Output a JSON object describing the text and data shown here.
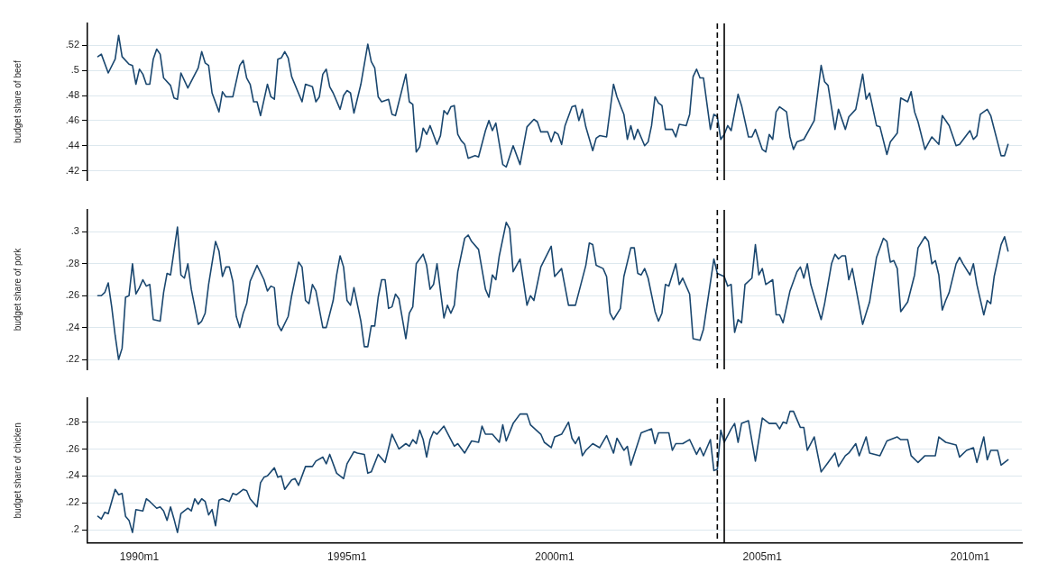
{
  "chart_data": [
    {
      "type": "line",
      "ylabel": "budget share of beef",
      "xlim": [
        "1988-10",
        "2011-04"
      ],
      "ylim": [
        0.4125,
        0.5375
      ],
      "yticks": [
        {
          "value": 0.42,
          "label": ".42"
        },
        {
          "value": 0.44,
          "label": ".44"
        },
        {
          "value": 0.46,
          "label": ".46"
        },
        {
          "value": 0.48,
          "label": ".48"
        },
        {
          "value": 0.5,
          "label": ".5"
        },
        {
          "value": 0.52,
          "label": ".52"
        }
      ],
      "grid": "y",
      "legend": false,
      "tick_labels": "y",
      "marker": "none",
      "line_style": "solid",
      "ref_lines": [
        {
          "axis": "x",
          "value": "2003-12",
          "line_style": "dashed",
          "color": "#000000"
        },
        {
          "axis": "x",
          "value": "2004-02",
          "line_style": "solid",
          "color": "#000000"
        }
      ],
      "series": [
        {
          "color": "#1a476f",
          "x": [
            "1989-01",
            "1989-02",
            "1989-04",
            "1989-06",
            "1989-07",
            "1989-08",
            "1989-10",
            "1989-11",
            "1989-12",
            "1990-01",
            "1990-02",
            "1990-03",
            "1990-04",
            "1990-05",
            "1990-06",
            "1990-07",
            "1990-08",
            "1990-10",
            "1990-11",
            "1990-12",
            "1991-01",
            "1991-03",
            "1991-06",
            "1991-07",
            "1991-08",
            "1991-09",
            "1991-10",
            "1991-12",
            "1992-01",
            "1992-02",
            "1992-04",
            "1992-06",
            "1992-07",
            "1992-08",
            "1992-09",
            "1992-10",
            "1992-11",
            "1992-12",
            "1993-02",
            "1993-03",
            "1993-04",
            "1993-05",
            "1993-06",
            "1993-07",
            "1993-08",
            "1993-09",
            "1993-12",
            "1994-01",
            "1994-03",
            "1994-04",
            "1994-05",
            "1994-06",
            "1994-07",
            "1994-08",
            "1994-09",
            "1994-11",
            "1994-12",
            "1995-01",
            "1995-02",
            "1995-03",
            "1995-05",
            "1995-07",
            "1995-08",
            "1995-09",
            "1995-10",
            "1995-11",
            "1996-01",
            "1996-02",
            "1996-03",
            "1996-06",
            "1996-07",
            "1996-08",
            "1996-09",
            "1996-10",
            "1996-11",
            "1996-12",
            "1997-01",
            "1997-03",
            "1997-04",
            "1997-05",
            "1997-06",
            "1997-07",
            "1997-08",
            "1997-09",
            "1997-10",
            "1997-11",
            "1997-12",
            "1998-02",
            "1998-03",
            "1998-05",
            "1998-06",
            "1998-07",
            "1998-08",
            "1998-10",
            "1998-11",
            "1999-01",
            "1999-03",
            "1999-05",
            "1999-07",
            "1999-08",
            "1999-09",
            "1999-11",
            "1999-12",
            "2000-01",
            "2000-02",
            "2000-03",
            "2000-04",
            "2000-06",
            "2000-07",
            "2000-08",
            "2000-09",
            "2000-10",
            "2000-12",
            "2001-01",
            "2001-02",
            "2001-04",
            "2001-06",
            "2001-07",
            "2001-09",
            "2001-10",
            "2001-11",
            "2001-12",
            "2002-01",
            "2002-03",
            "2002-04",
            "2002-05",
            "2002-06",
            "2002-07",
            "2002-08",
            "2002-09",
            "2002-11",
            "2002-12",
            "2003-01",
            "2003-03",
            "2003-04",
            "2003-05",
            "2003-06",
            "2003-07",
            "2003-08",
            "2003-10",
            "2003-11",
            "2003-12",
            "2004-01",
            "2004-02",
            "2004-03",
            "2004-04",
            "2004-06",
            "2004-07",
            "2004-09",
            "2004-10",
            "2004-11",
            "2005-01",
            "2005-02",
            "2005-03",
            "2005-04",
            "2005-05",
            "2005-06",
            "2005-07",
            "2005-08",
            "2005-09",
            "2005-10",
            "2005-11",
            "2006-01",
            "2006-04",
            "2006-06",
            "2006-07",
            "2006-08",
            "2006-10",
            "2006-11",
            "2007-01",
            "2007-02",
            "2007-04",
            "2007-06",
            "2007-07",
            "2007-08",
            "2007-10",
            "2007-11",
            "2008-01",
            "2008-02",
            "2008-04",
            "2008-05",
            "2008-07",
            "2008-08",
            "2008-09",
            "2008-10",
            "2008-12",
            "2009-02",
            "2009-04",
            "2009-05",
            "2009-07",
            "2009-09",
            "2009-10",
            "2010-01",
            "2010-02",
            "2010-03",
            "2010-04",
            "2010-06",
            "2010-07",
            "2010-10",
            "2010-11",
            "2010-12"
          ],
          "values": [
            0.511,
            0.513,
            0.498,
            0.509,
            0.528,
            0.511,
            0.505,
            0.504,
            0.489,
            0.501,
            0.497,
            0.489,
            0.489,
            0.509,
            0.517,
            0.513,
            0.494,
            0.488,
            0.478,
            0.477,
            0.498,
            0.486,
            0.502,
            0.515,
            0.506,
            0.504,
            0.482,
            0.467,
            0.483,
            0.479,
            0.479,
            0.504,
            0.508,
            0.494,
            0.489,
            0.475,
            0.475,
            0.464,
            0.489,
            0.479,
            0.477,
            0.509,
            0.51,
            0.515,
            0.51,
            0.495,
            0.475,
            0.489,
            0.487,
            0.475,
            0.479,
            0.497,
            0.501,
            0.487,
            0.482,
            0.469,
            0.48,
            0.484,
            0.482,
            0.466,
            0.489,
            0.521,
            0.507,
            0.502,
            0.479,
            0.475,
            0.477,
            0.465,
            0.464,
            0.497,
            0.475,
            0.473,
            0.435,
            0.439,
            0.454,
            0.449,
            0.456,
            0.441,
            0.448,
            0.468,
            0.465,
            0.471,
            0.472,
            0.449,
            0.444,
            0.441,
            0.43,
            0.432,
            0.431,
            0.452,
            0.46,
            0.452,
            0.458,
            0.425,
            0.423,
            0.44,
            0.425,
            0.455,
            0.461,
            0.459,
            0.451,
            0.451,
            0.443,
            0.451,
            0.449,
            0.441,
            0.456,
            0.471,
            0.472,
            0.46,
            0.469,
            0.455,
            0.436,
            0.446,
            0.448,
            0.447,
            0.489,
            0.479,
            0.465,
            0.445,
            0.456,
            0.445,
            0.453,
            0.44,
            0.443,
            0.456,
            0.479,
            0.474,
            0.472,
            0.453,
            0.453,
            0.447,
            0.457,
            0.456,
            0.465,
            0.495,
            0.501,
            0.494,
            0.494,
            0.453,
            0.465,
            0.463,
            0.445,
            0.449,
            0.456,
            0.452,
            0.481,
            0.472,
            0.447,
            0.447,
            0.453,
            0.437,
            0.435,
            0.449,
            0.445,
            0.467,
            0.471,
            0.469,
            0.467,
            0.447,
            0.437,
            0.443,
            0.445,
            0.46,
            0.504,
            0.491,
            0.488,
            0.453,
            0.469,
            0.453,
            0.463,
            0.469,
            0.497,
            0.477,
            0.482,
            0.456,
            0.455,
            0.433,
            0.443,
            0.45,
            0.478,
            0.475,
            0.483,
            0.467,
            0.459,
            0.437,
            0.447,
            0.441,
            0.464,
            0.456,
            0.44,
            0.441,
            0.452,
            0.445,
            0.448,
            0.465,
            0.469,
            0.464,
            0.432,
            0.432,
            0.441
          ]
        }
      ]
    },
    {
      "type": "line",
      "ylabel": "budget share of pork",
      "xlim": [
        "1988-10",
        "2011-04"
      ],
      "ylim": [
        0.2138,
        0.3138
      ],
      "yticks": [
        {
          "value": 0.22,
          "label": ".22"
        },
        {
          "value": 0.24,
          "label": ".24"
        },
        {
          "value": 0.26,
          "label": ".26"
        },
        {
          "value": 0.28,
          "label": ".28"
        },
        {
          "value": 0.3,
          "label": ".3"
        }
      ],
      "grid": "y",
      "legend": false,
      "tick_labels": "y",
      "marker": "none",
      "line_style": "solid",
      "ref_lines": [
        {
          "axis": "x",
          "value": "2003-12",
          "line_style": "dashed",
          "color": "#000000"
        },
        {
          "axis": "x",
          "value": "2004-02",
          "line_style": "solid",
          "color": "#000000"
        }
      ],
      "series": [
        {
          "color": "#1a476f",
          "x": [
            "1989-01",
            "1989-02",
            "1989-03",
            "1989-04",
            "1989-05",
            "1989-06",
            "1989-07",
            "1989-08",
            "1989-09",
            "1989-10",
            "1989-11",
            "1989-12",
            "1990-01",
            "1990-02",
            "1990-03",
            "1990-04",
            "1990-05",
            "1990-07",
            "1990-08",
            "1990-09",
            "1990-10",
            "1990-12",
            "1991-01",
            "1991-02",
            "1991-03",
            "1991-04",
            "1991-06",
            "1991-07",
            "1991-08",
            "1991-09",
            "1991-11",
            "1991-12",
            "1992-01",
            "1992-02",
            "1992-03",
            "1992-04",
            "1992-05",
            "1992-06",
            "1992-07",
            "1992-08",
            "1992-09",
            "1992-11",
            "1993-01",
            "1993-02",
            "1993-03",
            "1993-04",
            "1993-05",
            "1993-06",
            "1993-08",
            "1993-09",
            "1993-11",
            "1993-12",
            "1994-01",
            "1994-02",
            "1994-03",
            "1994-04",
            "1994-06",
            "1994-07",
            "1994-09",
            "1994-10",
            "1994-11",
            "1994-12",
            "1995-01",
            "1995-02",
            "1995-03",
            "1995-05",
            "1995-06",
            "1995-07",
            "1995-08",
            "1995-09",
            "1995-10",
            "1995-11",
            "1995-12",
            "1996-01",
            "1996-02",
            "1996-03",
            "1996-04",
            "1996-06",
            "1996-07",
            "1996-08",
            "1996-09",
            "1996-11",
            "1996-12",
            "1997-01",
            "1997-02",
            "1997-03",
            "1997-05",
            "1997-06",
            "1997-07",
            "1997-08",
            "1997-09",
            "1997-11",
            "1997-12",
            "1998-01",
            "1998-03",
            "1998-05",
            "1998-06",
            "1998-07",
            "1998-08",
            "1998-09",
            "1998-11",
            "1998-12",
            "1999-01",
            "1999-03",
            "1999-05",
            "1999-06",
            "1999-07",
            "1999-09",
            "1999-12",
            "2000-01",
            "2000-03",
            "2000-05",
            "2000-07",
            "2000-10",
            "2000-11",
            "2000-12",
            "2001-01",
            "2001-03",
            "2001-04",
            "2001-05",
            "2001-06",
            "2001-08",
            "2001-09",
            "2001-11",
            "2001-12",
            "2002-01",
            "2002-02",
            "2002-03",
            "2002-04",
            "2002-06",
            "2002-07",
            "2002-08",
            "2002-09",
            "2002-10",
            "2002-12",
            "2003-01",
            "2003-02",
            "2003-04",
            "2003-05",
            "2003-07",
            "2003-08",
            "2003-11",
            "2003-12",
            "2004-02",
            "2004-03",
            "2004-04",
            "2004-05",
            "2004-06",
            "2004-07",
            "2004-08",
            "2004-10",
            "2004-11",
            "2004-12",
            "2005-01",
            "2005-02",
            "2005-04",
            "2005-05",
            "2005-06",
            "2005-07",
            "2005-09",
            "2005-11",
            "2005-12",
            "2006-01",
            "2006-02",
            "2006-03",
            "2006-06",
            "2006-07",
            "2006-09",
            "2006-10",
            "2006-11",
            "2006-12",
            "2007-01",
            "2007-02",
            "2007-03",
            "2007-06",
            "2007-08",
            "2007-10",
            "2007-12",
            "2008-01",
            "2008-02",
            "2008-03",
            "2008-04",
            "2008-05",
            "2008-07",
            "2008-09",
            "2008-10",
            "2008-12",
            "2009-01",
            "2009-02",
            "2009-03",
            "2009-04",
            "2009-05",
            "2009-06",
            "2009-07",
            "2009-09",
            "2009-10",
            "2009-11",
            "2010-01",
            "2010-02",
            "2010-03",
            "2010-05",
            "2010-06",
            "2010-07",
            "2010-08",
            "2010-10",
            "2010-11",
            "2010-12"
          ],
          "values": [
            0.26,
            0.26,
            0.262,
            0.268,
            0.253,
            0.235,
            0.22,
            0.227,
            0.259,
            0.26,
            0.28,
            0.261,
            0.265,
            0.27,
            0.266,
            0.267,
            0.245,
            0.244,
            0.262,
            0.274,
            0.273,
            0.303,
            0.273,
            0.271,
            0.28,
            0.264,
            0.242,
            0.244,
            0.249,
            0.267,
            0.294,
            0.288,
            0.272,
            0.278,
            0.278,
            0.269,
            0.247,
            0.24,
            0.249,
            0.255,
            0.269,
            0.279,
            0.27,
            0.263,
            0.266,
            0.265,
            0.242,
            0.238,
            0.247,
            0.26,
            0.281,
            0.278,
            0.257,
            0.255,
            0.267,
            0.263,
            0.24,
            0.24,
            0.257,
            0.273,
            0.285,
            0.278,
            0.257,
            0.254,
            0.265,
            0.244,
            0.228,
            0.228,
            0.241,
            0.241,
            0.259,
            0.27,
            0.27,
            0.252,
            0.253,
            0.261,
            0.258,
            0.233,
            0.249,
            0.253,
            0.28,
            0.286,
            0.279,
            0.264,
            0.267,
            0.28,
            0.246,
            0.254,
            0.249,
            0.254,
            0.275,
            0.296,
            0.298,
            0.294,
            0.289,
            0.264,
            0.259,
            0.273,
            0.27,
            0.285,
            0.306,
            0.302,
            0.275,
            0.283,
            0.254,
            0.26,
            0.257,
            0.278,
            0.291,
            0.272,
            0.277,
            0.254,
            0.254,
            0.279,
            0.293,
            0.292,
            0.279,
            0.277,
            0.272,
            0.249,
            0.245,
            0.252,
            0.272,
            0.29,
            0.29,
            0.274,
            0.273,
            0.277,
            0.271,
            0.25,
            0.244,
            0.249,
            0.267,
            0.266,
            0.28,
            0.267,
            0.271,
            0.261,
            0.233,
            0.232,
            0.239,
            0.283,
            0.274,
            0.272,
            0.266,
            0.267,
            0.237,
            0.245,
            0.243,
            0.267,
            0.271,
            0.292,
            0.273,
            0.277,
            0.267,
            0.27,
            0.248,
            0.248,
            0.243,
            0.263,
            0.275,
            0.278,
            0.271,
            0.28,
            0.267,
            0.245,
            0.255,
            0.28,
            0.286,
            0.283,
            0.285,
            0.285,
            0.27,
            0.277,
            0.242,
            0.256,
            0.284,
            0.296,
            0.294,
            0.281,
            0.282,
            0.277,
            0.25,
            0.256,
            0.273,
            0.29,
            0.297,
            0.294,
            0.28,
            0.282,
            0.273,
            0.251,
            0.257,
            0.262,
            0.28,
            0.284,
            0.28,
            0.273,
            0.28,
            0.267,
            0.248,
            0.257,
            0.255,
            0.272,
            0.292,
            0.297,
            0.288
          ]
        }
      ]
    },
    {
      "type": "line",
      "ylabel": "budget share of chicken",
      "xlim": [
        "1988-10",
        "2011-04"
      ],
      "xticks": [
        {
          "value": "1990-01",
          "label": "1990m1"
        },
        {
          "value": "1995-01",
          "label": "1995m1"
        },
        {
          "value": "2000-01",
          "label": "2000m1"
        },
        {
          "value": "2005-01",
          "label": "2005m1"
        },
        {
          "value": "2010-01",
          "label": "2010m1"
        }
      ],
      "ylim": [
        0.1903,
        0.2978
      ],
      "yticks": [
        {
          "value": 0.2,
          "label": ".2"
        },
        {
          "value": 0.22,
          "label": ".22"
        },
        {
          "value": 0.24,
          "label": ".24"
        },
        {
          "value": 0.26,
          "label": ".26"
        },
        {
          "value": 0.28,
          "label": ".28"
        }
      ],
      "grid": "y",
      "legend": false,
      "marker": "none",
      "line_style": "solid",
      "ref_lines": [
        {
          "axis": "x",
          "value": "2003-12",
          "line_style": "dashed",
          "color": "#000000"
        },
        {
          "axis": "x",
          "value": "2004-02",
          "line_style": "solid",
          "color": "#000000"
        }
      ],
      "series": [
        {
          "color": "#1a476f",
          "x": [
            "1989-01",
            "1989-02",
            "1989-03",
            "1989-04",
            "1989-06",
            "1989-07",
            "1989-08",
            "1989-09",
            "1989-10",
            "1989-11",
            "1989-12",
            "1990-02",
            "1990-03",
            "1990-04",
            "1990-06",
            "1990-07",
            "1990-08",
            "1990-09",
            "1990-10",
            "1990-11",
            "1990-12",
            "1991-01",
            "1991-03",
            "1991-04",
            "1991-05",
            "1991-06",
            "1991-07",
            "1991-08",
            "1991-09",
            "1991-10",
            "1991-11",
            "1991-12",
            "1992-01",
            "1992-03",
            "1992-04",
            "1992-05",
            "1992-07",
            "1992-08",
            "1992-09",
            "1992-11",
            "1992-12",
            "1993-01",
            "1993-02",
            "1993-04",
            "1993-05",
            "1993-06",
            "1993-07",
            "1993-09",
            "1993-10",
            "1993-11",
            "1994-01",
            "1994-03",
            "1994-04",
            "1994-06",
            "1994-07",
            "1994-08",
            "1994-10",
            "1994-12",
            "1995-01",
            "1995-03",
            "1995-04",
            "1995-06",
            "1995-07",
            "1995-08",
            "1995-10",
            "1995-12",
            "1996-02",
            "1996-04",
            "1996-06",
            "1996-07",
            "1996-08",
            "1996-09",
            "1996-10",
            "1996-11",
            "1996-12",
            "1997-01",
            "1997-02",
            "1997-03",
            "1997-05",
            "1997-06",
            "1997-08",
            "1997-09",
            "1997-11",
            "1998-01",
            "1998-03",
            "1998-04",
            "1998-05",
            "1998-07",
            "1998-09",
            "1998-10",
            "1998-11",
            "1999-01",
            "1999-03",
            "1999-05",
            "1999-06",
            "1999-09",
            "1999-10",
            "1999-12",
            "2000-01",
            "2000-03",
            "2000-05",
            "2000-06",
            "2000-07",
            "2000-08",
            "2000-09",
            "2000-10",
            "2000-12",
            "2001-02",
            "2001-04",
            "2001-06",
            "2001-07",
            "2001-09",
            "2001-10",
            "2001-11",
            "2002-02",
            "2002-05",
            "2002-06",
            "2002-07",
            "2002-10",
            "2002-11",
            "2002-12",
            "2003-02",
            "2003-04",
            "2003-06",
            "2003-07",
            "2003-08",
            "2003-10",
            "2003-11",
            "2003-12",
            "2004-01",
            "2004-02",
            "2004-04",
            "2004-05",
            "2004-06",
            "2004-07",
            "2004-09",
            "2004-11",
            "2005-01",
            "2005-03",
            "2005-05",
            "2005-06",
            "2005-07",
            "2005-08",
            "2005-09",
            "2005-10",
            "2005-12",
            "2006-01",
            "2006-02",
            "2006-04",
            "2006-06",
            "2006-08",
            "2006-10",
            "2006-11",
            "2007-01",
            "2007-02",
            "2007-04",
            "2007-05",
            "2007-07",
            "2007-08",
            "2007-11",
            "2008-01",
            "2008-04",
            "2008-05",
            "2008-07",
            "2008-08",
            "2008-10",
            "2008-12",
            "2009-03",
            "2009-04",
            "2009-06",
            "2009-09",
            "2009-10",
            "2009-12",
            "2010-02",
            "2010-03",
            "2010-05",
            "2010-06",
            "2010-07",
            "2010-09",
            "2010-10",
            "2010-12"
          ],
          "values": [
            0.21,
            0.208,
            0.213,
            0.212,
            0.23,
            0.226,
            0.227,
            0.21,
            0.207,
            0.198,
            0.215,
            0.214,
            0.223,
            0.221,
            0.216,
            0.217,
            0.214,
            0.207,
            0.217,
            0.208,
            0.198,
            0.212,
            0.216,
            0.214,
            0.223,
            0.219,
            0.223,
            0.221,
            0.211,
            0.215,
            0.203,
            0.222,
            0.223,
            0.221,
            0.227,
            0.226,
            0.23,
            0.229,
            0.223,
            0.217,
            0.235,
            0.239,
            0.24,
            0.246,
            0.239,
            0.24,
            0.23,
            0.237,
            0.238,
            0.233,
            0.247,
            0.247,
            0.251,
            0.254,
            0.249,
            0.256,
            0.242,
            0.238,
            0.249,
            0.258,
            0.257,
            0.256,
            0.242,
            0.243,
            0.256,
            0.25,
            0.271,
            0.26,
            0.264,
            0.262,
            0.267,
            0.264,
            0.274,
            0.267,
            0.254,
            0.267,
            0.273,
            0.271,
            0.277,
            0.272,
            0.262,
            0.264,
            0.257,
            0.266,
            0.265,
            0.277,
            0.271,
            0.271,
            0.265,
            0.278,
            0.266,
            0.279,
            0.286,
            0.286,
            0.278,
            0.271,
            0.265,
            0.261,
            0.269,
            0.271,
            0.28,
            0.268,
            0.264,
            0.269,
            0.255,
            0.259,
            0.264,
            0.261,
            0.27,
            0.257,
            0.268,
            0.259,
            0.262,
            0.248,
            0.272,
            0.275,
            0.264,
            0.272,
            0.272,
            0.259,
            0.264,
            0.264,
            0.267,
            0.256,
            0.261,
            0.255,
            0.267,
            0.244,
            0.245,
            0.274,
            0.265,
            0.275,
            0.279,
            0.265,
            0.279,
            0.281,
            0.251,
            0.283,
            0.279,
            0.279,
            0.275,
            0.28,
            0.279,
            0.288,
            0.288,
            0.276,
            0.276,
            0.259,
            0.269,
            0.243,
            0.25,
            0.257,
            0.247,
            0.255,
            0.257,
            0.264,
            0.255,
            0.269,
            0.257,
            0.255,
            0.266,
            0.269,
            0.267,
            0.267,
            0.255,
            0.25,
            0.255,
            0.255,
            0.269,
            0.265,
            0.263,
            0.254,
            0.259,
            0.261,
            0.25,
            0.269,
            0.252,
            0.259,
            0.259,
            0.248,
            0.252
          ]
        }
      ]
    }
  ]
}
